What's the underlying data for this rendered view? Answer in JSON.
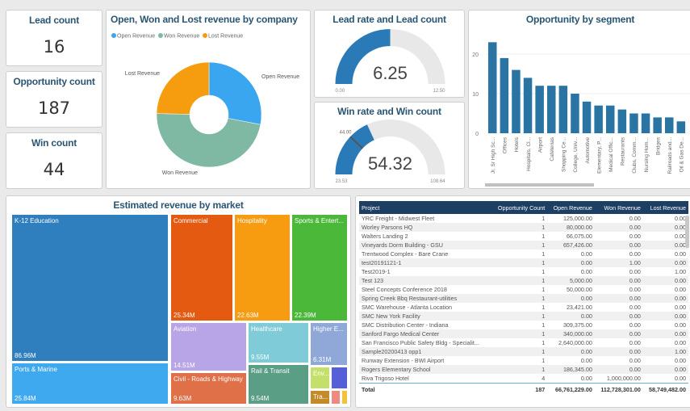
{
  "cards": [
    {
      "title": "Lead count",
      "value": "16"
    },
    {
      "title": "Opportunity count",
      "value": "187"
    },
    {
      "title": "Win count",
      "value": "44"
    }
  ],
  "donut": {
    "title": "Open, Won and Lost revenue by company",
    "legend": [
      "Open Revenue",
      "Won Revenue",
      "Lost Revenue"
    ],
    "chart_data": {
      "type": "pie",
      "categories": [
        "Open Revenue",
        "Won Revenue",
        "Lost Revenue"
      ],
      "values": [
        66761229,
        112728301,
        58749482
      ],
      "colors": [
        "#3aa6ef",
        "#7fb8a3",
        "#f59c0f"
      ]
    }
  },
  "lead_gauge": {
    "title": "Lead rate and Lead count",
    "value": "6.25",
    "min": "0.00",
    "max": "12.50",
    "value_num": 6.25,
    "min_num": 0,
    "max_num": 12.5
  },
  "win_gauge": {
    "title": "Win rate and Win count",
    "value": "54.32",
    "min": "23.53",
    "max": "108.64",
    "target": "44.00",
    "value_num": 54.32,
    "min_num": 23.53,
    "max_num": 108.64,
    "target_num": 44
  },
  "segment": {
    "title": "Opportunity by segment",
    "chart_data": {
      "type": "bar",
      "categories": [
        "Jr, Sr High Sc...",
        "Offices",
        "Hotels",
        "Hospitals, Cl...",
        "Airport",
        "Cafeterias",
        "Shopping Ce...",
        "College, Univ...",
        "Automotive",
        "Elementary, P...",
        "Medical Offic...",
        "Restaurants",
        "Clubs, Comm...",
        "Nursing Hom...",
        "Bridges",
        "Railroads and...",
        "Oil & Gas De..."
      ],
      "values": [
        23,
        19,
        16,
        14,
        12,
        12,
        12,
        10,
        8,
        7,
        7,
        6,
        5,
        5,
        4,
        4,
        3
      ],
      "yticks": [
        "0",
        "10",
        "20"
      ],
      "ylim": [
        0,
        24
      ],
      "color": "#2a74a3"
    }
  },
  "treemap": {
    "title": "Estimated revenue by market",
    "items": [
      {
        "name": "K-12 Education",
        "value": "86.96M",
        "color": "#2f7ebd"
      },
      {
        "name": "Ports & Marine",
        "value": "25.84M",
        "color": "#3fa9f0"
      },
      {
        "name": "Commercial",
        "value": "25.34M",
        "color": "#e45a10"
      },
      {
        "name": "Hospitality",
        "value": "22.63M",
        "color": "#f79c10"
      },
      {
        "name": "Sports & Entert...",
        "value": "22.39M",
        "color": "#4cb83a"
      },
      {
        "name": "Aviation",
        "value": "14.51M",
        "color": "#b8a5e8"
      },
      {
        "name": "Civil - Roads & Highway",
        "value": "9.63M",
        "color": "#e07048"
      },
      {
        "name": "Healthcare",
        "value": "9.55M",
        "color": "#7fcbd8"
      },
      {
        "name": "Rail & Transit",
        "value": "9.54M",
        "color": "#5a9e86"
      },
      {
        "name": "Higher E...",
        "value": "6.31M",
        "color": "#8fa8d8"
      },
      {
        "name": "Env...",
        "value": "",
        "color": "#c5e06a"
      },
      {
        "name": "",
        "value": "",
        "color": "#5560d8"
      },
      {
        "name": "Tra...",
        "value": "",
        "color": "#c48a2a"
      },
      {
        "name": "",
        "value": "",
        "color": "#f08a80"
      },
      {
        "name": "",
        "value": "",
        "color": "#f5c33b"
      }
    ]
  },
  "table": {
    "columns": [
      "Project",
      "Opportunity Count",
      "Open Revenue",
      "Won Revenue",
      "Lost Revenue"
    ],
    "rows": [
      [
        "YRC Freight - Midwest Fleet",
        "1",
        "125,000.00",
        "0.00",
        "0.00"
      ],
      [
        "Worley Parsons HQ",
        "1",
        "80,000.00",
        "0.00",
        "0.00"
      ],
      [
        "Walters Landing 2",
        "1",
        "66,075.00",
        "0.00",
        "0.00"
      ],
      [
        "Vineyards Dorm Building - GSU",
        "1",
        "657,426.00",
        "0.00",
        "0.00"
      ],
      [
        "Trentwood Complex - Bare Crane",
        "1",
        "0.00",
        "0.00",
        "0.00"
      ],
      [
        "test20191121-1",
        "1",
        "0.00",
        "1.00",
        "0.00"
      ],
      [
        "Test2019-1",
        "1",
        "0.00",
        "0.00",
        "1.00"
      ],
      [
        "Test 123",
        "1",
        "5,000.00",
        "0.00",
        "0.00"
      ],
      [
        "Steel Concepts Conference 2018",
        "1",
        "50,000.00",
        "0.00",
        "0.00"
      ],
      [
        "Spring Creek Bbq Restaurant-utilities",
        "1",
        "0.00",
        "0.00",
        "0.00"
      ],
      [
        "SMC Warehouse - Atlanta Location",
        "1",
        "23,421.00",
        "0.00",
        "0.00"
      ],
      [
        "SMC New York Facility",
        "1",
        "0.00",
        "0.00",
        "0.00"
      ],
      [
        "SMC Distribution Center - Indiana",
        "1",
        "309,375.00",
        "0.00",
        "0.00"
      ],
      [
        "Sanford Fargo Medical Center",
        "1",
        "340,000.00",
        "0.00",
        "0.00"
      ],
      [
        "San Francisco Public Safety Bldg - Specialit...",
        "1",
        "2,640,000.00",
        "0.00",
        "0.00"
      ],
      [
        "Sample20200413 opp1",
        "1",
        "0.00",
        "0.00",
        "1.00"
      ],
      [
        "Runway Extension - BWI Airport",
        "1",
        "0.00",
        "0.00",
        "0.00"
      ],
      [
        "Rogers Elementary School",
        "1",
        "186,345.00",
        "0.00",
        "0.00"
      ],
      [
        "Riva Trigoso Hotel",
        "4",
        "0.00",
        "1,000,000.00",
        "0.00"
      ]
    ],
    "total": [
      "Total",
      "187",
      "66,761,229.00",
      "112,728,301.00",
      "58,749,482.00"
    ]
  }
}
